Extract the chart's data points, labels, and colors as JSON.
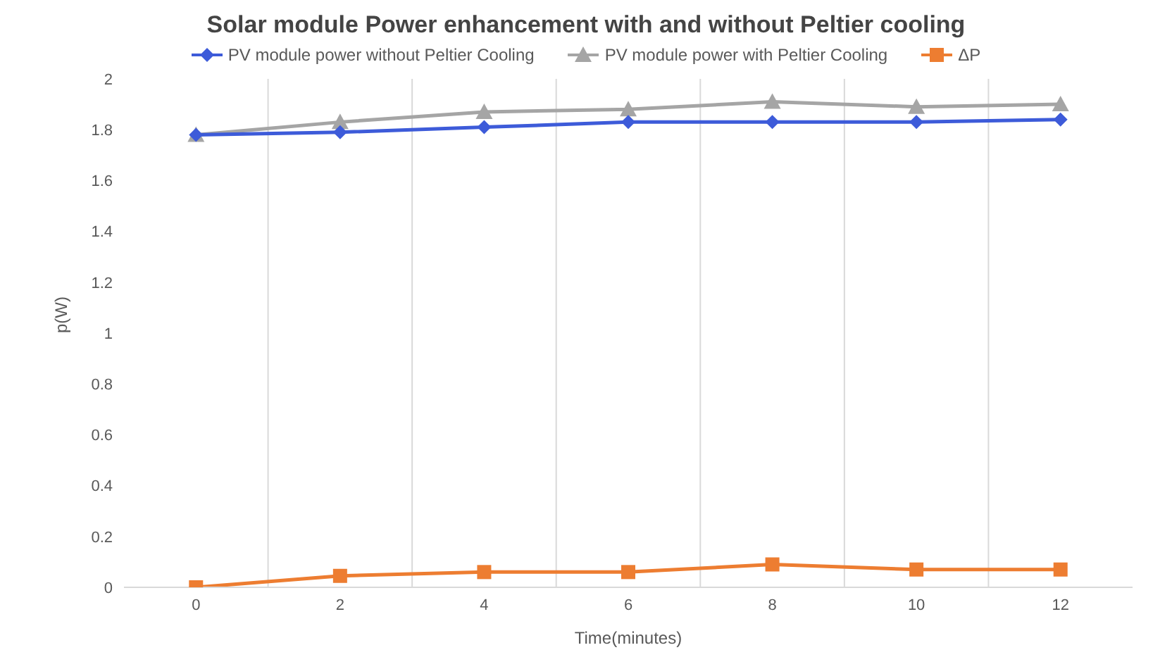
{
  "chart_data": {
    "type": "line",
    "title": "Solar module Power enhancement with and without Peltier cooling",
    "xlabel": "Time(minutes)",
    "ylabel": "p(W)",
    "categories": [
      "0",
      "2",
      "4",
      "6",
      "8",
      "10",
      "12"
    ],
    "series": [
      {
        "name": "PV module power without Peltier Cooling",
        "color": "#3d5bd9",
        "marker": "diamond",
        "values": [
          1.78,
          1.79,
          1.81,
          1.83,
          1.83,
          1.83,
          1.84
        ]
      },
      {
        "name": "PV module power with Peltier Cooling",
        "color": "#a5a5a5",
        "marker": "triangle",
        "values": [
          1.78,
          1.83,
          1.87,
          1.88,
          1.91,
          1.89,
          1.9
        ]
      },
      {
        "name": "ΔP",
        "color": "#ed7d31",
        "marker": "square",
        "values": [
          0,
          0.045,
          0.06,
          0.06,
          0.09,
          0.07,
          0.07
        ]
      }
    ],
    "ylim": [
      0,
      2
    ],
    "yticks": [
      0,
      0.2,
      0.4,
      0.6,
      0.8,
      1,
      1.2,
      1.4,
      1.6,
      1.8,
      2
    ],
    "grid": "x",
    "legend": "top",
    "line_style": "solid"
  }
}
